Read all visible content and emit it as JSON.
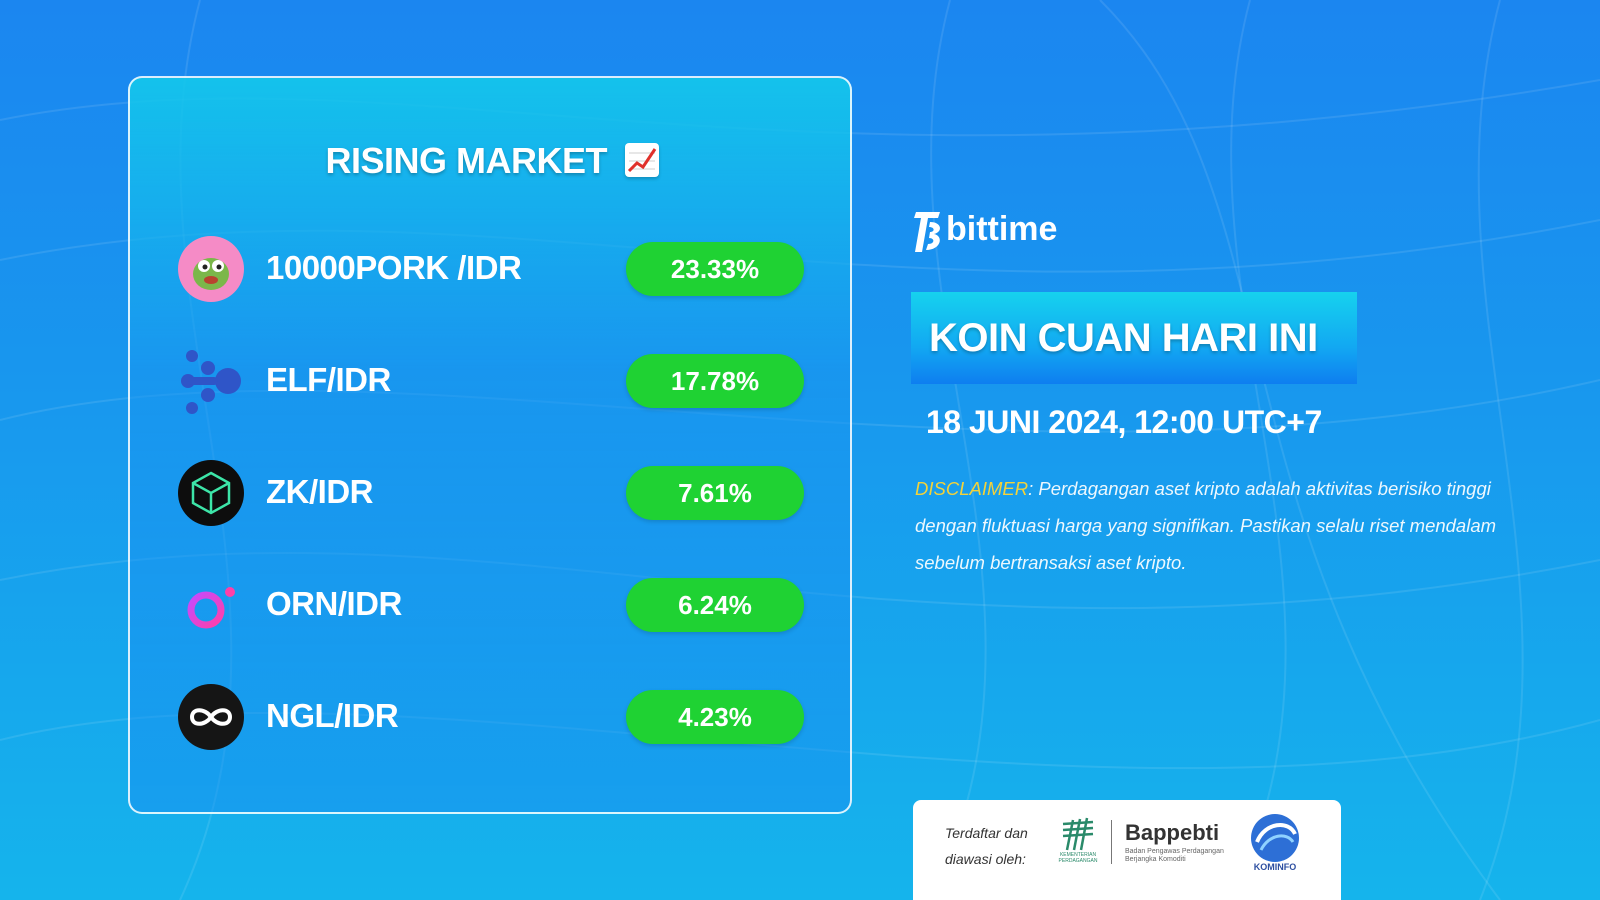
{
  "card": {
    "title": "RISING MARKET",
    "rows": [
      {
        "pair": "10000PORK /IDR",
        "change": "23.33%",
        "icon": "pork-icon"
      },
      {
        "pair": "ELF/IDR",
        "change": "17.78%",
        "icon": "elf-icon"
      },
      {
        "pair": "ZK/IDR",
        "change": "7.61%",
        "icon": "zk-icon"
      },
      {
        "pair": "ORN/IDR",
        "change": "6.24%",
        "icon": "orn-icon"
      },
      {
        "pair": "NGL/IDR",
        "change": "4.23%",
        "icon": "ngl-icon"
      }
    ]
  },
  "brand": {
    "name": "bittime"
  },
  "banner": {
    "title": "KOIN CUAN HARI INI"
  },
  "date": "18 JUNI 2024, 12:00 UTC+7",
  "disclaimer": {
    "label": "DISCLAIMER",
    "text": ": Perdagangan aset kripto adalah aktivitas berisiko tinggi dengan fluktuasi harga yang signifikan. Pastikan selalu riset mendalam sebelum bertransaksi aset kripto."
  },
  "regulator": {
    "text": "Terdaftar dan diawasi oleh:",
    "kemendag": "KEMENTERIAN PERDAGANGAN",
    "bappebti": "Bappebti",
    "bappebti_sub": "Badan Pengawas Perdagangan Berjangka Komoditi",
    "kominfo": "KOMINFO"
  },
  "colors": {
    "pill_green": "#1fd233",
    "disclaimer_label": "#f3d23a",
    "background": "#1b86f0"
  }
}
